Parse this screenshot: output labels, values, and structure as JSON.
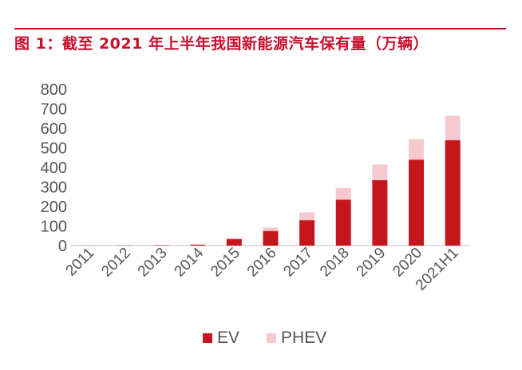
{
  "header": {
    "title": "图 1：截至 2021 年上半年我国新能源汽车保有量（万辆）"
  },
  "colors": {
    "accent": "#c8102e",
    "ev": "#c5161d",
    "phev": "#f6c9ce",
    "axis_text": "#555555",
    "axis_line": "#bfbfbf"
  },
  "chart_data": {
    "type": "bar",
    "stacked": true,
    "title": "图 1：截至 2021 年上半年我国新能源汽车保有量（万辆）",
    "categories": [
      "2011",
      "2012",
      "2013",
      "2014",
      "2015",
      "2016",
      "2017",
      "2018",
      "2019",
      "2020",
      "2021H1"
    ],
    "series": [
      {
        "name": "EV",
        "color": "#c5161d",
        "values": [
          0.5,
          1,
          2,
          4,
          33,
          75,
          130,
          235,
          335,
          440,
          540
        ]
      },
      {
        "name": "PHEV",
        "color": "#f6c9ce",
        "values": [
          0,
          0,
          0.5,
          4,
          7,
          18,
          40,
          60,
          80,
          105,
          125
        ]
      }
    ],
    "yticks": [
      0,
      100,
      200,
      300,
      400,
      500,
      600,
      700,
      800
    ],
    "ylim": [
      0,
      800
    ],
    "grid": false,
    "legend": "bottom"
  }
}
